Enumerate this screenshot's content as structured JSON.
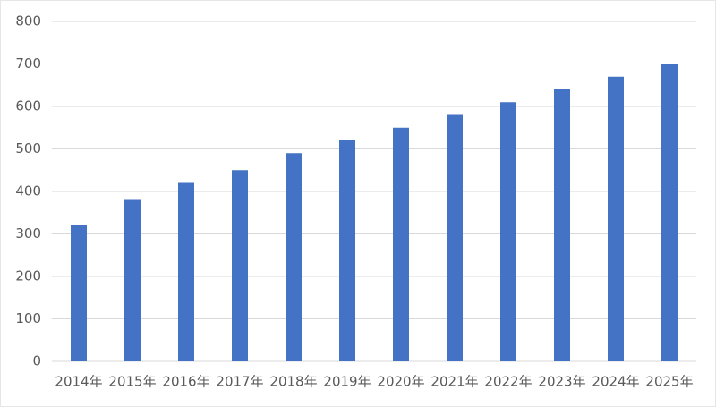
{
  "chart_data": {
    "type": "bar",
    "categories": [
      "2014年",
      "2015年",
      "2016年",
      "2017年",
      "2018年",
      "2019年",
      "2020年",
      "2021年",
      "2022年",
      "2023年",
      "2024年",
      "2025年"
    ],
    "values": [
      320,
      380,
      420,
      450,
      490,
      520,
      550,
      580,
      610,
      640,
      670,
      700
    ],
    "color": "#4472c4",
    "ylim": [
      0,
      800
    ],
    "yticks": [
      0,
      100,
      200,
      300,
      400,
      500,
      600,
      700,
      800
    ],
    "grid": true
  }
}
